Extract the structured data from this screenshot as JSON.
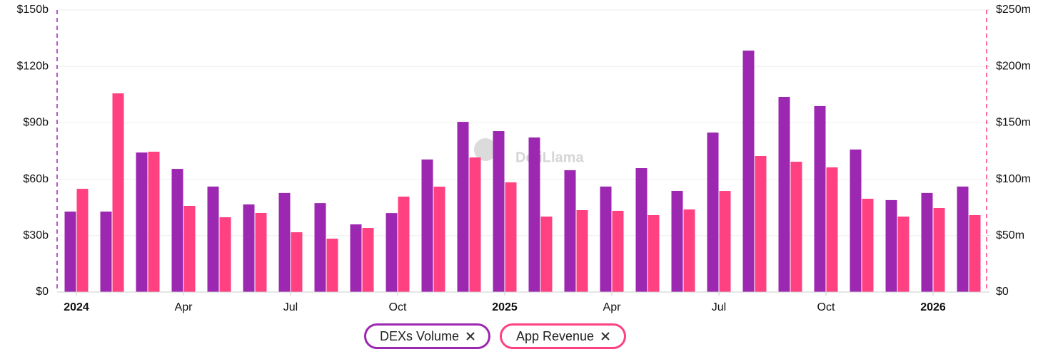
{
  "chart_data": {
    "type": "bar",
    "watermark": "DefiLlama",
    "categories": [
      "2024",
      null,
      null,
      "Apr",
      null,
      null,
      "Jul",
      null,
      null,
      "Oct",
      null,
      null,
      "2025",
      null,
      null,
      "Apr",
      null,
      null,
      "Jul",
      null,
      null,
      "Oct",
      null,
      null,
      "2026",
      null
    ],
    "series": [
      {
        "name": "DEXs Volume",
        "color": "#9c27b0",
        "axis": "y",
        "values": [
          42.8,
          42.8,
          74.2,
          65.5,
          56.1,
          46.6,
          52.7,
          47.3,
          36.0,
          42.0,
          70.5,
          90.5,
          85.6,
          82.2,
          64.8,
          56.1,
          65.9,
          53.8,
          84.8,
          128.4,
          103.8,
          98.9,
          75.8,
          48.9,
          52.7,
          56.1
        ]
      },
      {
        "name": "App Revenue",
        "color": "#ff4081",
        "axis": "y2",
        "values": [
          91.5,
          176.1,
          124.4,
          76.4,
          66.3,
          70.1,
          53.0,
          47.3,
          56.8,
          84.6,
          93.4,
          119.3,
          97.2,
          66.9,
          72.6,
          72.0,
          68.2,
          73.2,
          89.6,
          120.6,
          115.5,
          110.5,
          82.7,
          66.9,
          74.5,
          68.2
        ]
      }
    ],
    "ylim": [
      0,
      150
    ],
    "yticks": [
      {
        "value": 0,
        "label": "$0"
      },
      {
        "value": 30,
        "label": "$30b"
      },
      {
        "value": 60,
        "label": "$60b"
      },
      {
        "value": 90,
        "label": "$90b"
      },
      {
        "value": 120,
        "label": "$120b"
      },
      {
        "value": 150,
        "label": "$150b"
      }
    ],
    "y2lim": [
      0,
      250
    ],
    "y2ticks": [
      {
        "value": 0,
        "label": "$0"
      },
      {
        "value": 50,
        "label": "$50m"
      },
      {
        "value": 100,
        "label": "$100m"
      },
      {
        "value": 150,
        "label": "$150m"
      },
      {
        "value": 200,
        "label": "$200m"
      },
      {
        "value": 250,
        "label": "$250m"
      }
    ],
    "grid": true
  }
}
